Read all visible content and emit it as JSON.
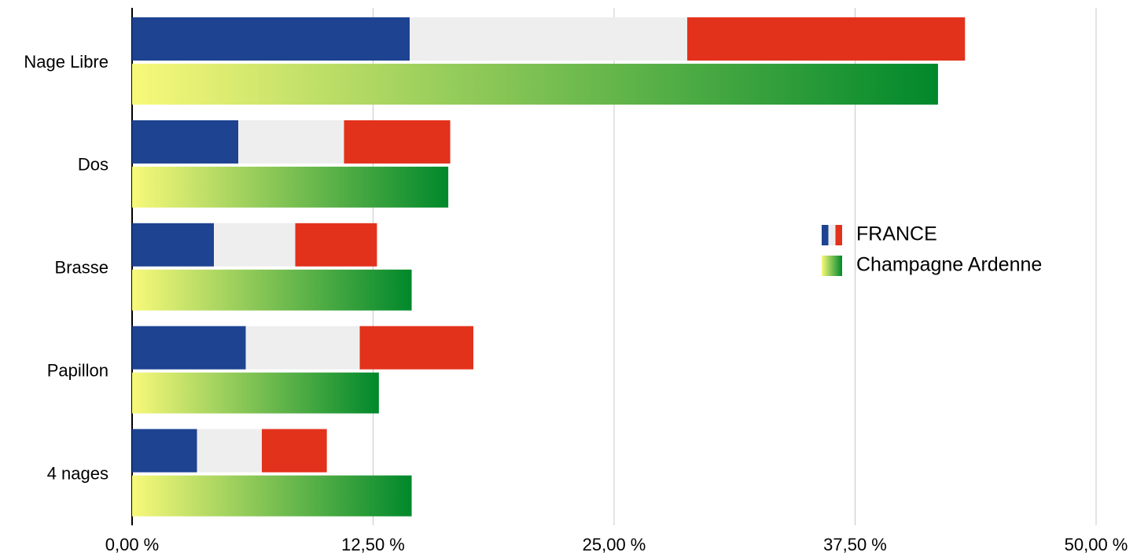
{
  "chart_data": {
    "type": "bar",
    "orientation": "horizontal",
    "categories": [
      "Nage Libre",
      "Dos",
      "Brasse",
      "Papillon",
      "4 nages"
    ],
    "series": [
      {
        "name": "FRANCE",
        "colors": [
          "#1d4391",
          "#eeeeee",
          "#e2321c"
        ],
        "values": [
          43.2,
          16.5,
          12.7,
          17.7,
          10.1
        ]
      },
      {
        "name": "Champagne Ardenne",
        "colors": [
          "#f8f97a",
          "#00882b"
        ],
        "values": [
          41.8,
          16.4,
          14.5,
          12.8,
          14.5
        ]
      }
    ],
    "xlim": [
      0,
      50
    ],
    "xticks": [
      {
        "value": 0,
        "label": "0,00 %"
      },
      {
        "value": 12.5,
        "label": "12,50 %"
      },
      {
        "value": 25,
        "label": "25,00 %"
      },
      {
        "value": 37.5,
        "label": "37,50 %"
      },
      {
        "value": 50,
        "label": "50,00 %"
      }
    ],
    "grid": true,
    "legend": "right"
  }
}
